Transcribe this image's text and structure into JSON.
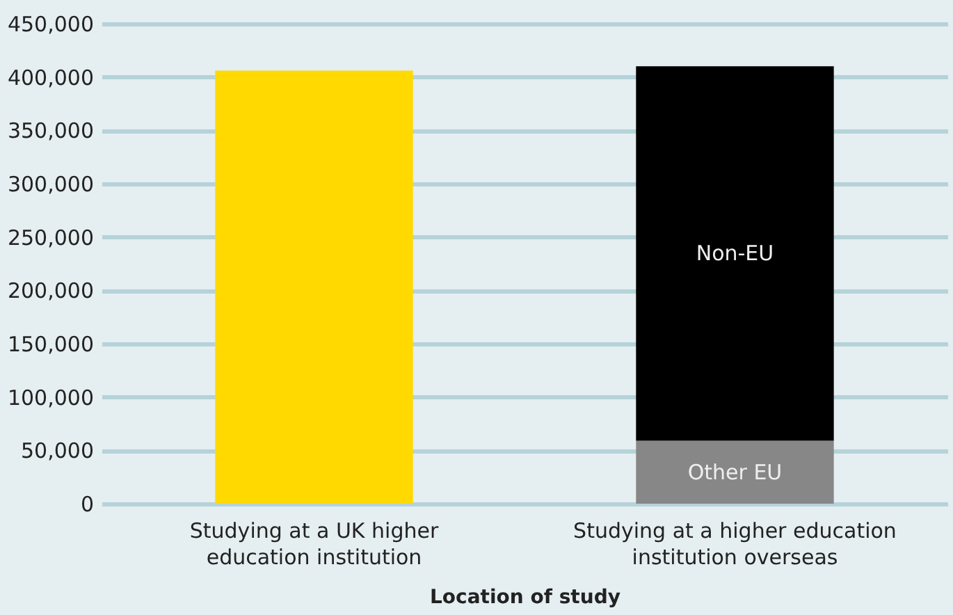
{
  "chart_data": {
    "type": "bar",
    "stacked": true,
    "xlabel": "Location of study",
    "categories": [
      "Studying at a UK higher education institution",
      "Studying at a higher education institution overseas"
    ],
    "series": [
      {
        "color": "#ffd900",
        "values": [
          406000,
          null
        ]
      },
      {
        "name": "Other EU",
        "color": "#878787",
        "values": [
          null,
          59000
        ]
      },
      {
        "name": "Non-EU",
        "color": "#000000",
        "values": [
          null,
          351000
        ]
      }
    ],
    "ylim": [
      0,
      450000
    ],
    "yticks": [
      0,
      {
        "value": 50000,
        "label": "50,000"
      },
      {
        "value": 100000,
        "label": "100,000"
      },
      {
        "value": 150000,
        "label": "150,000"
      },
      {
        "value": 200000,
        "label": "200,000"
      },
      {
        "value": 250000,
        "label": "250,000"
      },
      {
        "value": 300000,
        "label": "300,000"
      },
      {
        "value": 350000,
        "label": "350,000"
      },
      {
        "value": 400000,
        "label": "400,000"
      },
      {
        "value": 450000,
        "label": "450,000"
      }
    ],
    "grid": "y",
    "legend": false
  }
}
